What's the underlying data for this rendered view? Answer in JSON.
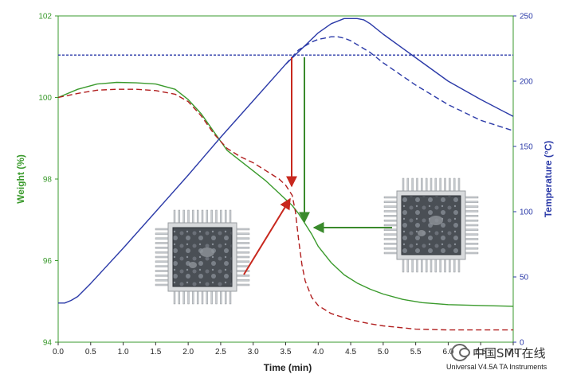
{
  "chart_data": {
    "type": "line",
    "title": "",
    "xlabel": "Time (min)",
    "ylabel_left": "Weight (%)",
    "ylabel_right": "Temperature (°C)",
    "xlim": [
      0.0,
      7.0
    ],
    "ylim_left": [
      94,
      102
    ],
    "ylim_right": [
      0,
      250
    ],
    "x_ticks": [
      "0.0",
      "0.5",
      "1.0",
      "1.5",
      "2.0",
      "2.5",
      "3.0",
      "3.5",
      "4.0",
      "4.5",
      "5.0",
      "5.5",
      "6.0",
      "6.5",
      "7.0"
    ],
    "y_ticks_left": [
      "94",
      "96",
      "98",
      "100",
      "102"
    ],
    "y_ticks_right": [
      "0",
      "50",
      "100",
      "150",
      "200",
      "250"
    ],
    "grid": false,
    "reference_line": {
      "axis": "right",
      "value": 220,
      "style": "dashed",
      "color": "#2b3aa8"
    },
    "series": [
      {
        "axis": "left",
        "color": "#3a9a2c",
        "style": "solid",
        "x": [
          0.0,
          0.3,
          0.6,
          0.9,
          1.2,
          1.5,
          1.8,
          2.0,
          2.2,
          2.4,
          2.6,
          2.8,
          3.0,
          3.2,
          3.4,
          3.6,
          3.7,
          3.8,
          3.9,
          4.0,
          4.2,
          4.4,
          4.6,
          4.8,
          5.0,
          5.3,
          5.6,
          6.0,
          6.5,
          7.0
        ],
        "y": [
          100.0,
          100.2,
          100.33,
          100.37,
          100.36,
          100.33,
          100.2,
          99.95,
          99.6,
          99.15,
          98.7,
          98.45,
          98.2,
          97.95,
          97.65,
          97.35,
          97.15,
          96.9,
          96.65,
          96.35,
          95.95,
          95.65,
          95.45,
          95.3,
          95.18,
          95.05,
          94.97,
          94.92,
          94.9,
          94.88
        ]
      },
      {
        "axis": "left",
        "color": "#b11e1e",
        "style": "dashed",
        "x": [
          0.0,
          0.3,
          0.6,
          0.9,
          1.2,
          1.5,
          1.8,
          2.0,
          2.2,
          2.4,
          2.6,
          2.8,
          3.0,
          3.2,
          3.4,
          3.5,
          3.6,
          3.65,
          3.7,
          3.75,
          3.8,
          3.9,
          4.0,
          4.2,
          4.5,
          4.8,
          5.0,
          5.5,
          6.0,
          6.5,
          7.0
        ],
        "y": [
          100.0,
          100.1,
          100.18,
          100.2,
          100.2,
          100.17,
          100.08,
          99.9,
          99.55,
          99.1,
          98.75,
          98.55,
          98.4,
          98.2,
          98.0,
          97.85,
          97.6,
          97.2,
          96.5,
          95.9,
          95.5,
          95.1,
          94.9,
          94.7,
          94.55,
          94.45,
          94.4,
          94.32,
          94.3,
          94.3,
          94.3
        ]
      },
      {
        "axis": "right",
        "color": "#2b3aa8",
        "style": "solid",
        "x": [
          0.0,
          0.1,
          0.2,
          0.3,
          0.5,
          1.0,
          1.5,
          2.0,
          2.5,
          3.0,
          3.5,
          4.0,
          4.2,
          4.4,
          4.5,
          4.6,
          4.7,
          4.8,
          5.0,
          5.5,
          6.0,
          6.5,
          7.0
        ],
        "y": [
          30,
          30,
          32,
          35,
          45,
          72,
          100,
          128,
          157,
          185,
          213,
          237,
          244,
          248,
          248,
          248,
          247,
          244,
          236,
          218,
          200,
          186,
          173
        ]
      },
      {
        "axis": "right",
        "color": "#2b3aa8",
        "style": "dashed",
        "x": [
          3.5,
          3.7,
          3.9,
          4.0,
          4.1,
          4.2,
          4.3,
          4.4,
          4.5,
          4.6,
          4.8,
          5.0,
          5.5,
          6.0,
          6.5,
          7.0
        ],
        "y": [
          213,
          224,
          230,
          232,
          233,
          234,
          234,
          233,
          231,
          228,
          222,
          214,
          197,
          182,
          170,
          162
        ]
      }
    ],
    "footer": "Universal V4.5A TA Instruments",
    "watermark": "中国SMT在线"
  }
}
